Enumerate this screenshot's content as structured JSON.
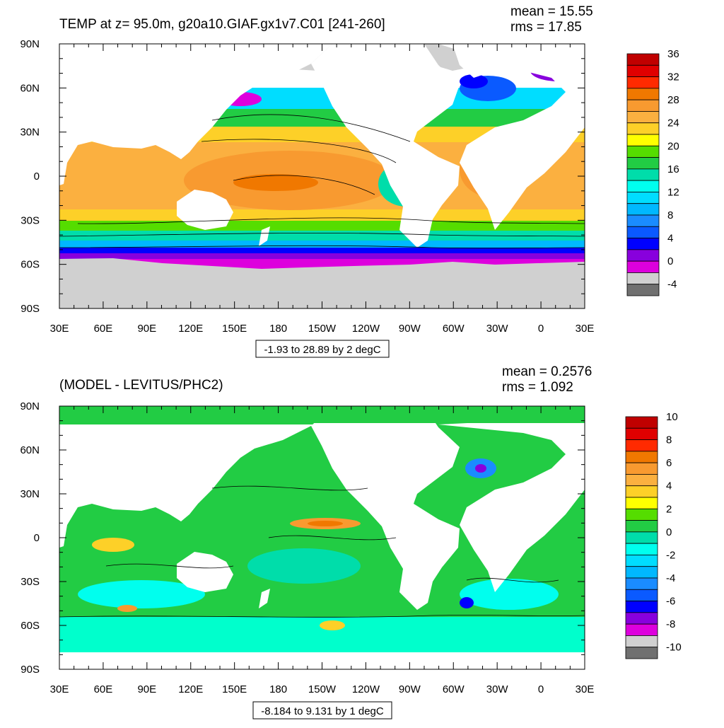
{
  "panels": [
    {
      "title": "TEMP at z=  95.0m, g20a10.GIAF.gx1v7.C01 [241-260]",
      "mean": "mean = 15.55",
      "rms": "rms = 17.85",
      "range_label": "-1.93 to 28.89 by 2 degC",
      "colorbar": {
        "labels": [
          "36",
          "32",
          "28",
          "24",
          "20",
          "16",
          "12",
          "8",
          "4",
          "0",
          "-4"
        ],
        "colors": [
          "#c00000",
          "#e00000",
          "#ff2a00",
          "#f07800",
          "#f89a30",
          "#fbb040",
          "#fdd028",
          "#ffff00",
          "#55dd00",
          "#22cc44",
          "#00ddaa",
          "#00ffee",
          "#00ddff",
          "#00b8ff",
          "#1a8cff",
          "#0a5aff",
          "#0000ff",
          "#8800dd",
          "#dd00dd",
          "#d0d0d0",
          "#707070"
        ]
      }
    },
    {
      "title": "(MODEL - LEVITUS/PHC2)",
      "mean": "mean = 0.2576",
      "rms": "rms = 1.092",
      "range_label": "-8.184 to 9.131 by 1 degC",
      "colorbar": {
        "labels": [
          "10",
          "8",
          "6",
          "4",
          "2",
          "0",
          "-2",
          "-4",
          "-6",
          "-8",
          "-10"
        ],
        "colors": [
          "#c00000",
          "#e00000",
          "#ff2a00",
          "#f07800",
          "#f89a30",
          "#fbb040",
          "#fdd028",
          "#ffff00",
          "#55dd00",
          "#22cc44",
          "#00ddaa",
          "#00ffee",
          "#00ddff",
          "#00b8ff",
          "#1a8cff",
          "#0a5aff",
          "#0000ff",
          "#8800dd",
          "#dd00dd",
          "#d0d0d0",
          "#707070"
        ]
      }
    }
  ],
  "axes": {
    "lon_labels": [
      "30E",
      "60E",
      "90E",
      "120E",
      "150E",
      "180",
      "150W",
      "120W",
      "90W",
      "60W",
      "30W",
      "0",
      "30E"
    ],
    "lat_labels": [
      "90N",
      "60N",
      "30N",
      "0",
      "30S",
      "60S",
      "90S"
    ]
  },
  "land_color": "#ffffff",
  "missing_color": "#d0d0d0"
}
